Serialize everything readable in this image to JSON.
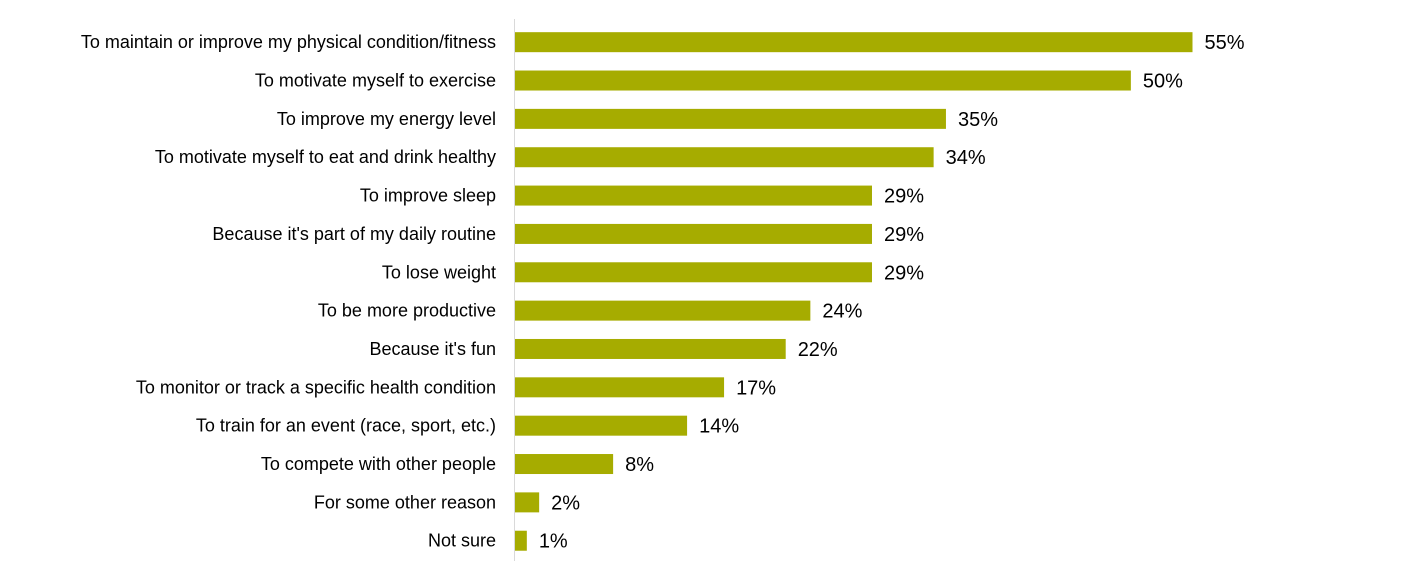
{
  "chart_data": {
    "type": "bar",
    "orientation": "horizontal",
    "title": "",
    "xlabel": "",
    "ylabel": "",
    "xlim": [
      0,
      55
    ],
    "grid": false,
    "legend": "none",
    "bar_color": "#a6ac00",
    "value_format": "percent",
    "categories": [
      "To maintain or improve my physical condition/fitness",
      "To motivate myself to exercise",
      "To improve my energy level",
      "To motivate myself to eat and drink healthy",
      "To improve sleep",
      "Because it's part of my daily routine",
      "To lose weight",
      "To be more productive",
      "Because it's fun",
      "To monitor or track a specific health condition",
      "To train for an event (race, sport, etc.)",
      "To compete with other people",
      "For some other reason",
      "Not sure"
    ],
    "values": [
      55,
      50,
      35,
      34,
      29,
      29,
      29,
      24,
      22,
      17,
      14,
      8,
      2,
      1
    ],
    "data_labels": [
      "55%",
      "50%",
      "35%",
      "34%",
      "29%",
      "29%",
      "29%",
      "24%",
      "22%",
      "17%",
      "14%",
      "8%",
      "2%",
      "1%"
    ]
  }
}
